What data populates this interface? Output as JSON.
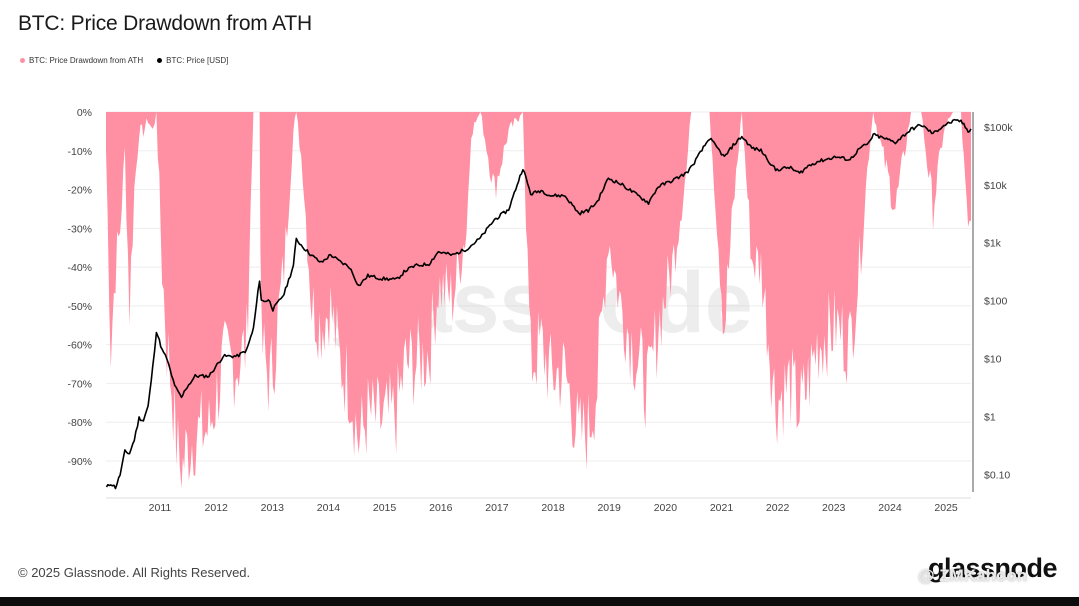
{
  "page": {
    "title": "BTC: Price Drawdown from ATH",
    "copyright": "© 2025 Glassnode. All Rights Reserved.",
    "brand": "glassnode",
    "watermark": "glassnode",
    "overlay_credit": "@ ZMKahoon"
  },
  "colors": {
    "drawdown_fill": "#ff8fa3",
    "price_line": "#000000",
    "grid": "#eeeeee"
  },
  "chart_data": {
    "type": "area",
    "title": "BTC: Price Drawdown from ATH",
    "legend_position": "top-left",
    "grid": true,
    "legend": [
      {
        "label": "BTC: Price Drawdown from ATH",
        "color": "#ff8fa3"
      },
      {
        "label": "BTC: Price [USD]",
        "color": "#000000"
      }
    ],
    "x_ticks": [
      "2011",
      "2012",
      "2013",
      "2014",
      "2015",
      "2016",
      "2017",
      "2018",
      "2019",
      "2020",
      "2021",
      "2022",
      "2023",
      "2024",
      "2025"
    ],
    "x_range": [
      "2010-07",
      "2025-12"
    ],
    "y_left": {
      "label": "",
      "range": [
        -98,
        0
      ],
      "ticks": [
        "0%",
        "-10%",
        "-20%",
        "-30%",
        "-40%",
        "-50%",
        "-60%",
        "-70%",
        "-80%",
        "-90%"
      ]
    },
    "y_right": {
      "label": "",
      "scale": "log",
      "range": [
        0.05,
        180000
      ],
      "ticks": [
        "$100k",
        "$10k",
        "$1k",
        "$100",
        "$10",
        "$1",
        "$0.10"
      ]
    },
    "series": [
      {
        "name": "BTC: Price Drawdown from ATH",
        "axis": "left",
        "kind": "area",
        "points": [
          [
            "2010-07-15",
            -10
          ],
          [
            "2010-08-15",
            -60
          ],
          [
            "2010-09-15",
            -40
          ],
          [
            "2010-10-15",
            -30
          ],
          [
            "2010-11-15",
            -10
          ],
          [
            "2010-12-15",
            -50
          ],
          [
            "2011-01-15",
            -20
          ],
          [
            "2011-02-15",
            -5
          ],
          [
            "2011-03-15",
            -5
          ],
          [
            "2011-04-15",
            -2
          ],
          [
            "2011-05-15",
            -5
          ],
          [
            "2011-06-08",
            0
          ],
          [
            "2011-07-15",
            -40
          ],
          [
            "2011-08-15",
            -60
          ],
          [
            "2011-09-15",
            -70
          ],
          [
            "2011-10-15",
            -85
          ],
          [
            "2011-11-18",
            -93
          ],
          [
            "2011-12-15",
            -88
          ],
          [
            "2012-02-15",
            -83
          ],
          [
            "2012-05-15",
            -82
          ],
          [
            "2012-08-15",
            -65
          ],
          [
            "2012-11-15",
            -65
          ],
          [
            "2013-01-15",
            -60
          ],
          [
            "2013-02-28",
            0
          ],
          [
            "2013-04-09",
            0
          ],
          [
            "2013-04-20",
            -60
          ],
          [
            "2013-06-15",
            -70
          ],
          [
            "2013-07-05",
            -65
          ],
          [
            "2013-09-15",
            -40
          ],
          [
            "2013-11-15",
            -5
          ],
          [
            "2013-12-04",
            0
          ],
          [
            "2014-01-15",
            -15
          ],
          [
            "2014-03-15",
            -50
          ],
          [
            "2014-05-15",
            -55
          ],
          [
            "2014-07-15",
            -50
          ],
          [
            "2014-09-15",
            -65
          ],
          [
            "2014-11-15",
            -70
          ],
          [
            "2015-01-14",
            -85
          ],
          [
            "2015-03-15",
            -78
          ],
          [
            "2015-06-15",
            -80
          ],
          [
            "2015-09-15",
            -78
          ],
          [
            "2015-11-15",
            -65
          ],
          [
            "2016-01-15",
            -65
          ],
          [
            "2016-04-15",
            -62
          ],
          [
            "2016-06-15",
            -45
          ],
          [
            "2016-09-15",
            -48
          ],
          [
            "2016-12-15",
            -30
          ],
          [
            "2017-01-15",
            -5
          ],
          [
            "2017-03-15",
            0
          ],
          [
            "2017-06-15",
            -20
          ],
          [
            "2017-09-15",
            -5
          ],
          [
            "2017-12-17",
            0
          ],
          [
            "2018-02-06",
            -65
          ],
          [
            "2018-04-15",
            -60
          ],
          [
            "2018-06-15",
            -68
          ],
          [
            "2018-09-15",
            -67
          ],
          [
            "2018-11-25",
            -80
          ],
          [
            "2018-12-15",
            -84
          ],
          [
            "2019-02-15",
            -82
          ],
          [
            "2019-04-15",
            -70
          ],
          [
            "2019-06-26",
            -32
          ],
          [
            "2019-09-15",
            -50
          ],
          [
            "2019-12-15",
            -62
          ],
          [
            "2020-03-13",
            -72
          ],
          [
            "2020-05-15",
            -55
          ],
          [
            "2020-08-15",
            -40
          ],
          [
            "2020-11-15",
            -15
          ],
          [
            "2020-12-16",
            0
          ],
          [
            "2021-04-14",
            0
          ],
          [
            "2021-07-20",
            -55
          ],
          [
            "2021-09-15",
            -25
          ],
          [
            "2021-11-10",
            0
          ],
          [
            "2022-01-15",
            -38
          ],
          [
            "2022-03-15",
            -40
          ],
          [
            "2022-06-18",
            -75
          ],
          [
            "2022-09-15",
            -70
          ],
          [
            "2022-11-21",
            -77
          ],
          [
            "2023-01-15",
            -70
          ],
          [
            "2023-03-15",
            -60
          ],
          [
            "2023-07-15",
            -55
          ],
          [
            "2023-10-15",
            -60
          ],
          [
            "2023-12-15",
            -40
          ],
          [
            "2024-02-15",
            -10
          ],
          [
            "2024-03-14",
            0
          ],
          [
            "2024-08-05",
            -25
          ],
          [
            "2024-11-15",
            0
          ],
          [
            "2025-01-20",
            0
          ],
          [
            "2025-04-07",
            -25
          ],
          [
            "2025-06-15",
            -5
          ],
          [
            "2025-08-14",
            0
          ],
          [
            "2025-10-06",
            0
          ],
          [
            "2025-11-21",
            -33
          ],
          [
            "2025-12-10",
            -28
          ]
        ]
      },
      {
        "name": "BTC: Price [USD]",
        "axis": "right",
        "kind": "line",
        "points": [
          [
            "2010-07-18",
            0.06
          ],
          [
            "2010-08-15",
            0.07
          ],
          [
            "2010-09-15",
            0.06
          ],
          [
            "2010-10-15",
            0.1
          ],
          [
            "2010-11-15",
            0.25
          ],
          [
            "2010-12-15",
            0.23
          ],
          [
            "2011-01-15",
            0.4
          ],
          [
            "2011-02-15",
            0.95
          ],
          [
            "2011-03-15",
            0.85
          ],
          [
            "2011-04-15",
            1.5
          ],
          [
            "2011-05-15",
            7
          ],
          [
            "2011-06-08",
            30
          ],
          [
            "2011-07-15",
            14
          ],
          [
            "2011-08-15",
            10
          ],
          [
            "2011-09-15",
            5
          ],
          [
            "2011-10-15",
            3
          ],
          [
            "2011-11-18",
            2.1
          ],
          [
            "2011-12-15",
            3
          ],
          [
            "2012-02-15",
            5
          ],
          [
            "2012-05-15",
            5
          ],
          [
            "2012-08-15",
            11
          ],
          [
            "2012-11-15",
            11
          ],
          [
            "2013-01-15",
            14
          ],
          [
            "2013-02-28",
            33
          ],
          [
            "2013-04-09",
            230
          ],
          [
            "2013-04-20",
            100
          ],
          [
            "2013-06-15",
            100
          ],
          [
            "2013-07-05",
            70
          ],
          [
            "2013-09-15",
            130
          ],
          [
            "2013-11-15",
            400
          ],
          [
            "2013-12-04",
            1150
          ],
          [
            "2014-01-15",
            850
          ],
          [
            "2014-03-15",
            600
          ],
          [
            "2014-05-15",
            450
          ],
          [
            "2014-07-15",
            620
          ],
          [
            "2014-09-15",
            470
          ],
          [
            "2014-11-15",
            380
          ],
          [
            "2015-01-14",
            180
          ],
          [
            "2015-03-15",
            270
          ],
          [
            "2015-06-15",
            240
          ],
          [
            "2015-09-15",
            230
          ],
          [
            "2015-11-15",
            330
          ],
          [
            "2016-01-15",
            400
          ],
          [
            "2016-04-15",
            430
          ],
          [
            "2016-06-15",
            700
          ],
          [
            "2016-09-15",
            610
          ],
          [
            "2016-12-15",
            780
          ],
          [
            "2017-01-15",
            900
          ],
          [
            "2017-03-15",
            1200
          ],
          [
            "2017-06-15",
            2500
          ],
          [
            "2017-09-15",
            3700
          ],
          [
            "2017-12-17",
            19500
          ],
          [
            "2018-02-06",
            6900
          ],
          [
            "2018-04-15",
            8000
          ],
          [
            "2018-06-15",
            6500
          ],
          [
            "2018-09-15",
            6500
          ],
          [
            "2018-11-25",
            3800
          ],
          [
            "2018-12-15",
            3200
          ],
          [
            "2019-02-15",
            3600
          ],
          [
            "2019-04-15",
            5100
          ],
          [
            "2019-06-26",
            13000
          ],
          [
            "2019-09-15",
            10300
          ],
          [
            "2019-12-15",
            7100
          ],
          [
            "2020-03-13",
            4900
          ],
          [
            "2020-05-15",
            9300
          ],
          [
            "2020-08-15",
            11800
          ],
          [
            "2020-11-15",
            16000
          ],
          [
            "2020-12-16",
            20000
          ],
          [
            "2021-04-14",
            64000
          ],
          [
            "2021-07-20",
            29800
          ],
          [
            "2021-09-15",
            48000
          ],
          [
            "2021-11-10",
            68000
          ],
          [
            "2022-01-15",
            43000
          ],
          [
            "2022-03-15",
            39000
          ],
          [
            "2022-06-18",
            18000
          ],
          [
            "2022-09-15",
            20000
          ],
          [
            "2022-11-21",
            15700
          ],
          [
            "2023-01-15",
            21000
          ],
          [
            "2023-03-15",
            25000
          ],
          [
            "2023-07-15",
            30300
          ],
          [
            "2023-10-15",
            27000
          ],
          [
            "2023-12-15",
            42000
          ],
          [
            "2024-02-15",
            52000
          ],
          [
            "2024-03-14",
            73000
          ],
          [
            "2024-08-05",
            54000
          ],
          [
            "2024-11-15",
            90000
          ],
          [
            "2025-01-20",
            108000
          ],
          [
            "2025-04-07",
            76000
          ],
          [
            "2025-06-15",
            105000
          ],
          [
            "2025-08-14",
            124000
          ],
          [
            "2025-10-06",
            126000
          ],
          [
            "2025-11-21",
            84000
          ],
          [
            "2025-12-10",
            92000
          ]
        ]
      }
    ]
  }
}
